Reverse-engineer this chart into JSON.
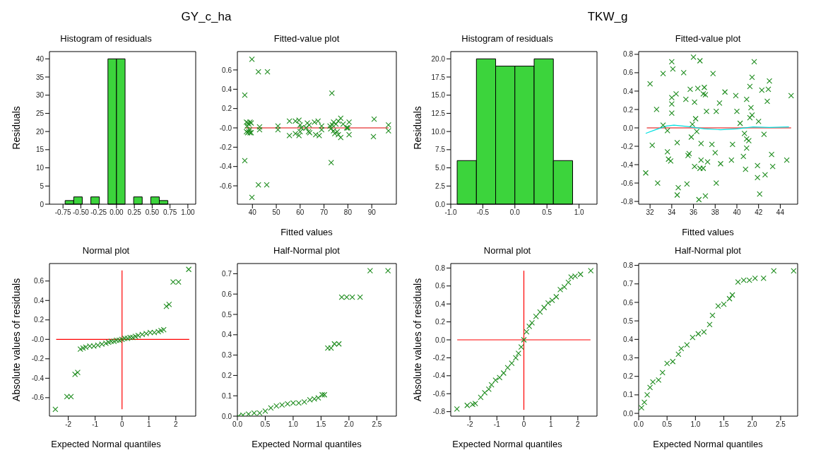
{
  "chart_data": [
    {
      "type": "histogram",
      "title": "Histogram of residuals",
      "ylabel": "Residuals",
      "annotations": [
        "GY_c_ha"
      ],
      "color": "#3cd43c",
      "bins": [
        -0.72,
        -0.6,
        -0.48,
        -0.36,
        -0.24,
        -0.12,
        0,
        0.12,
        0.24,
        0.36,
        0.48,
        0.6,
        0.72
      ],
      "values": [
        1,
        2,
        0,
        2,
        0,
        40,
        40,
        0,
        2,
        0,
        2,
        1
      ],
      "xlim": [
        -0.94,
        1.11
      ],
      "xticks": [
        {
          "value": -0.75,
          "label": "-0.75"
        },
        {
          "value": -0.5,
          "label": "-0.50"
        },
        {
          "value": -0.25,
          "label": "-0.25"
        },
        {
          "value": 0,
          "label": "0.00"
        },
        {
          "value": 0.25,
          "label": "0.25"
        },
        {
          "value": 0.5,
          "label": "0.50"
        },
        {
          "value": 0.75,
          "label": "0.75"
        },
        {
          "value": 1,
          "label": "1.00"
        }
      ],
      "ylim": [
        0,
        42
      ],
      "yticks": [
        0,
        5,
        10,
        15,
        20,
        25,
        30,
        35,
        40
      ]
    },
    {
      "type": "scatter",
      "title": "Fitted-value plot",
      "xlabel": "Fitted values",
      "xlim": [
        33.7,
        100.3
      ],
      "xticks": [
        40,
        50,
        60,
        70,
        80,
        90
      ],
      "ylim": [
        -0.79,
        0.79
      ],
      "yticks": [
        -0.6,
        -0.4,
        -0.2,
        {
          "value": 0,
          "label": "-0.0"
        },
        0.2,
        0.4,
        0.6
      ],
      "series": [
        {
          "type": "scatter",
          "marker": "cross",
          "color": "#1e8c1e",
          "x": [
            39.8,
            42.5,
            46.3,
            36.8,
            73.3,
            36.8,
            73,
            42.5,
            46,
            39.8,
            37.5,
            38,
            38.5,
            39,
            37.5,
            38,
            38.5,
            39,
            37.8,
            38.8,
            39.5,
            39.5,
            43,
            43,
            50.7,
            50.7,
            55.5,
            55.5,
            58,
            58,
            59.5,
            59.5,
            60,
            60,
            60.5,
            62.5,
            63,
            63.5,
            63.8,
            64,
            66,
            66.5,
            67.5,
            68,
            69,
            69,
            72.5,
            72.8,
            73.5,
            74,
            74,
            74.5,
            75,
            75.5,
            76,
            76,
            77,
            77,
            78,
            79.5,
            80,
            80.5,
            80.5,
            91,
            90.7,
            97,
            97
          ],
          "values": [
            0.71,
            0.58,
            0.58,
            0.34,
            0.36,
            -0.34,
            -0.36,
            -0.59,
            -0.59,
            -0.72,
            0.06,
            0.05,
            0.04,
            0.06,
            -0.04,
            -0.05,
            -0.04,
            -0.05,
            0.02,
            -0.02,
            0.05,
            -0.05,
            0.01,
            -0.02,
            0.02,
            -0.02,
            0.07,
            -0.08,
            0.07,
            -0.06,
            0.08,
            -0.08,
            0.03,
            -0.04,
            0,
            0,
            0.05,
            -0.04,
            0.03,
            -0.05,
            0.06,
            -0.07,
            0.07,
            -0.08,
            0.02,
            -0.02,
            0.02,
            -0.01,
            0.03,
            -0.03,
            0.06,
            -0.06,
            0.04,
            -0.04,
            0.07,
            -0.07,
            0.1,
            -0.1,
            0.04,
            0,
            0,
            0.06,
            -0.07,
            0.09,
            -0.09,
            0.03,
            -0.03
          ]
        },
        {
          "type": "line",
          "marker": "none",
          "color": "#e00000",
          "x": [
            37,
            97
          ],
          "values": [
            0,
            0
          ]
        }
      ]
    },
    {
      "type": "histogram",
      "title": "Histogram of residuals",
      "ylabel": "Residuals",
      "annotations": [
        "TKW_g"
      ],
      "color": "#3cd43c",
      "bins": [
        -0.9,
        -0.6,
        -0.3,
        0,
        0.3,
        0.6,
        0.9
      ],
      "values": [
        6,
        20,
        19,
        19,
        20,
        6
      ],
      "xlim": [
        -1.0,
        1.28
      ],
      "xticks": [
        {
          "value": -1,
          "label": "-1.0"
        },
        -0.5,
        {
          "value": 0,
          "label": "0.0"
        },
        0.5,
        {
          "value": 1,
          "label": "1.0"
        }
      ],
      "ylim": [
        0,
        21
      ],
      "yticks": [
        {
          "value": 0,
          "label": "0.0"
        },
        2.5,
        {
          "value": 5,
          "label": "5.0"
        },
        7.5,
        {
          "value": 10,
          "label": "10.0"
        },
        12.5,
        {
          "value": 15,
          "label": "15.0"
        },
        17.5,
        {
          "value": 20,
          "label": "20.0"
        }
      ]
    },
    {
      "type": "scatter",
      "title": "Fitted-value plot",
      "xlabel": "Fitted values",
      "xlim": [
        30.95,
        45.6
      ],
      "xticks": [
        32,
        34,
        36,
        38,
        40,
        42,
        44
      ],
      "ylim": [
        -0.83,
        0.83
      ],
      "yticks": [
        -0.8,
        -0.6,
        -0.4,
        -0.2,
        {
          "value": 0,
          "label": "0.0"
        },
        0.2,
        0.4,
        0.6,
        0.8
      ],
      "series": [
        {
          "type": "scatter",
          "marker": "cross",
          "color": "#1e8c1e",
          "x": [
            31.6,
            32,
            32.2,
            32.6,
            32.7,
            33.2,
            33.2,
            33.6,
            33.6,
            33.7,
            33.9,
            34,
            34,
            34,
            34,
            34.1,
            34.4,
            34.5,
            34.5,
            34.6,
            35.1,
            35.3,
            35.5,
            35.6,
            35.4,
            35.7,
            35.8,
            35.9,
            36,
            36.1,
            36.1,
            36.2,
            36.3,
            36.4,
            36.5,
            36.6,
            36.6,
            36.7,
            36.7,
            36.9,
            36.9,
            37,
            37.1,
            37.1,
            37.2,
            37.3,
            37.7,
            37.8,
            38,
            38.1,
            38.1,
            38.4,
            38.5,
            38.9,
            39.5,
            39.6,
            39.9,
            40,
            40.3,
            40.6,
            40.7,
            40.8,
            40.9,
            40.9,
            40.9,
            41.1,
            41.2,
            41.2,
            41.3,
            41.4,
            41.4,
            41.6,
            41.9,
            41.9,
            42,
            42.1,
            42.3,
            42.5,
            42.6,
            42.8,
            42.9,
            43,
            43.2,
            43.3,
            44.6,
            45
          ],
          "values": [
            -0.49,
            0.48,
            -0.19,
            0.2,
            -0.6,
            0.59,
            0.03,
            -0.03,
            -0.26,
            -0.34,
            -0.36,
            0.72,
            0.33,
            0.26,
            0.16,
            0.64,
            0.37,
            -0.16,
            -0.73,
            -0.65,
            0.6,
            0.31,
            -0.3,
            -0.28,
            -0.61,
            0.42,
            -0.1,
            0.04,
            0.77,
            -0.42,
            0.28,
            0.1,
            -0.04,
            0.43,
            -0.78,
            0.73,
            -0.44,
            -0.35,
            -0.17,
            0.37,
            -0.44,
            0.44,
            0.36,
            -0.74,
            0.18,
            -0.37,
            -0.18,
            0.59,
            -0.27,
            0.18,
            -0.6,
            0.27,
            -0.39,
            0.39,
            -0.35,
            -0.18,
            0.35,
            0.18,
            0.05,
            -0.31,
            -0.06,
            -0.45,
            -0.12,
            -0.22,
            0.31,
            -0.14,
            0.45,
            0.11,
            0.22,
            0.14,
            0.55,
            0.72,
            -0.41,
            -0.54,
            0.07,
            -0.72,
            0.41,
            -0.07,
            -0.51,
            0.29,
            0.42,
            0.51,
            -0.29,
            -0.42,
            -0.35,
            0.35
          ]
        },
        {
          "type": "line",
          "marker": "none",
          "color": "#e00000",
          "x": [
            31.7,
            45
          ],
          "values": [
            0,
            0
          ]
        },
        {
          "type": "line",
          "marker": "none",
          "color": "#00e0e0",
          "x": [
            31.6,
            32.5,
            33.5,
            34.2,
            35.5,
            37,
            38.5,
            40,
            41.5,
            43,
            44.8
          ],
          "values": [
            -0.06,
            -0.02,
            0.02,
            0.03,
            0.015,
            -0.01,
            -0.02,
            -0.01,
            0.01,
            0.005,
            0.01
          ]
        }
      ]
    },
    {
      "type": "scatter",
      "title": "Normal plot",
      "xlabel": "Expected Normal quantiles",
      "ylabel": "Absolute values of residuals",
      "xlim": [
        -2.7,
        2.74
      ],
      "xticks": [
        -2,
        -1,
        0,
        1,
        2
      ],
      "ylim": [
        -0.79,
        0.78
      ],
      "yticks": [
        -0.6,
        -0.4,
        -0.2,
        {
          "value": 0,
          "label": "-0.0"
        },
        0.2,
        0.4,
        0.6
      ],
      "series": [
        {
          "type": "line",
          "marker": "none",
          "color": "#ff0000",
          "x": [
            -2.45,
            2.5
          ],
          "values": [
            0,
            0
          ]
        },
        {
          "type": "line",
          "marker": "none",
          "color": "#ff0000",
          "x": [
            0,
            0
          ],
          "values": [
            -0.72,
            0.71
          ]
        },
        {
          "type": "scatter",
          "marker": "cross",
          "color": "#1e8c1e",
          "x": [
            -2.48,
            -2.05,
            -1.9,
            -1.75,
            -1.65,
            -1.55,
            -1.45,
            -1.35,
            -1.2,
            -1.05,
            -0.9,
            -0.75,
            -0.6,
            -0.5,
            -0.4,
            -0.3,
            -0.2,
            -0.1,
            0,
            0.1,
            0.2,
            0.3,
            0.4,
            0.5,
            0.6,
            0.75,
            0.9,
            1.05,
            1.2,
            1.35,
            1.45,
            1.55,
            1.65,
            1.75,
            1.9,
            2.1,
            2.48
          ],
          "values": [
            -0.72,
            -0.59,
            -0.59,
            -0.36,
            -0.34,
            -0.1,
            -0.09,
            -0.08,
            -0.07,
            -0.07,
            -0.06,
            -0.05,
            -0.04,
            -0.03,
            -0.02,
            -0.02,
            -0.01,
            -0.01,
            0,
            0.01,
            0.01,
            0.02,
            0.02,
            0.03,
            0.04,
            0.05,
            0.06,
            0.07,
            0.07,
            0.08,
            0.09,
            0.1,
            0.34,
            0.36,
            0.59,
            0.59,
            0.72
          ]
        }
      ]
    },
    {
      "type": "scatter",
      "title": "Half-Normal plot",
      "xlabel": "Expected Normal quantiles",
      "xlim": [
        0,
        2.85
      ],
      "xticks": [
        {
          "value": 0,
          "label": "0.0"
        },
        0.5,
        {
          "value": 1,
          "label": "1.0"
        },
        1.5,
        {
          "value": 2,
          "label": "2.0"
        },
        2.5
      ],
      "ylim": [
        0,
        0.75
      ],
      "yticks": [
        {
          "value": 0,
          "label": "0.0"
        },
        0.1,
        0.2,
        0.3,
        0.4,
        0.5,
        0.6,
        0.7
      ],
      "series": [
        {
          "type": "scatter",
          "marker": "cross",
          "color": "#1e8c1e",
          "x": [
            0.02,
            0.1,
            0.2,
            0.3,
            0.4,
            0.5,
            0.6,
            0.7,
            0.8,
            0.9,
            1.0,
            1.1,
            1.2,
            1.3,
            1.38,
            1.45,
            1.52,
            1.56,
            1.62,
            1.68,
            1.74,
            1.82,
            1.87,
            1.96,
            2.06,
            2.2,
            2.38,
            2.7
          ],
          "values": [
            0,
            0.005,
            0.01,
            0.015,
            0.015,
            0.025,
            0.04,
            0.05,
            0.055,
            0.06,
            0.065,
            0.065,
            0.07,
            0.08,
            0.085,
            0.09,
            0.105,
            0.105,
            0.335,
            0.335,
            0.355,
            0.355,
            0.585,
            0.585,
            0.585,
            0.585,
            0.715,
            0.715
          ]
        }
      ]
    },
    {
      "type": "scatter",
      "title": "Normal plot",
      "xlabel": "Expected Normal quantiles",
      "ylabel": "Absolute values of residuals",
      "xlim": [
        -2.71,
        2.71
      ],
      "xticks": [
        -2,
        -1,
        0,
        1,
        2
      ],
      "ylim": [
        -0.85,
        0.85
      ],
      "yticks": [
        -0.8,
        -0.6,
        -0.4,
        -0.2,
        {
          "value": 0,
          "label": "0.0"
        },
        0.2,
        0.4,
        0.6,
        0.8
      ],
      "series": [
        {
          "type": "line",
          "marker": "none",
          "color": "#ff0000",
          "x": [
            -2.47,
            2.47
          ],
          "values": [
            0,
            0
          ]
        },
        {
          "type": "line",
          "marker": "none",
          "color": "#ff0000",
          "x": [
            0,
            0
          ],
          "values": [
            -0.78,
            0.77
          ]
        },
        {
          "type": "scatter",
          "marker": "cross",
          "color": "#1e8c1e",
          "x": [
            -2.48,
            -2.1,
            -1.9,
            -1.8,
            -1.6,
            -1.45,
            -1.3,
            -1.2,
            -1.05,
            -0.9,
            -0.75,
            -0.6,
            -0.45,
            -0.3,
            -0.2,
            -0.1,
            0,
            0.1,
            0.2,
            0.3,
            0.45,
            0.6,
            0.75,
            0.9,
            1.05,
            1.2,
            1.35,
            1.5,
            1.65,
            1.75,
            1.9,
            2.1,
            2.48
          ],
          "values": [
            -0.77,
            -0.73,
            -0.72,
            -0.71,
            -0.64,
            -0.59,
            -0.55,
            -0.5,
            -0.45,
            -0.42,
            -0.37,
            -0.31,
            -0.26,
            -0.2,
            -0.15,
            -0.08,
            0,
            0.09,
            0.15,
            0.19,
            0.26,
            0.31,
            0.36,
            0.41,
            0.44,
            0.48,
            0.56,
            0.59,
            0.64,
            0.7,
            0.71,
            0.73,
            0.77
          ]
        }
      ]
    },
    {
      "type": "scatter",
      "title": "Half-Normal plot",
      "xlabel": "Expected Normal quantiles",
      "xlim": [
        0,
        2.8
      ],
      "xticks": [
        {
          "value": 0,
          "label": "0.0"
        },
        0.5,
        {
          "value": 1,
          "label": "1.0"
        },
        1.5,
        {
          "value": 2,
          "label": "2.0"
        },
        2.5
      ],
      "ylim": [
        -0.015,
        0.81
      ],
      "yticks": [
        {
          "value": 0,
          "label": "0.0"
        },
        0.1,
        0.2,
        0.3,
        0.4,
        0.5,
        0.6,
        0.7,
        0.8
      ],
      "series": [
        {
          "type": "scatter",
          "marker": "cross",
          "color": "#1e8c1e",
          "x": [
            0.05,
            0.1,
            0.15,
            0.2,
            0.25,
            0.35,
            0.42,
            0.5,
            0.6,
            0.7,
            0.75,
            0.85,
            0.95,
            1.05,
            1.15,
            1.25,
            1.3,
            1.4,
            1.5,
            1.6,
            1.65,
            1.75,
            1.85,
            1.95,
            2.05,
            2.2,
            2.38,
            2.73
          ],
          "values": [
            0.03,
            0.06,
            0.1,
            0.14,
            0.17,
            0.18,
            0.22,
            0.27,
            0.28,
            0.32,
            0.35,
            0.37,
            0.41,
            0.43,
            0.44,
            0.48,
            0.53,
            0.58,
            0.59,
            0.62,
            0.64,
            0.71,
            0.72,
            0.72,
            0.73,
            0.73,
            0.77,
            0.77
          ]
        }
      ]
    }
  ]
}
